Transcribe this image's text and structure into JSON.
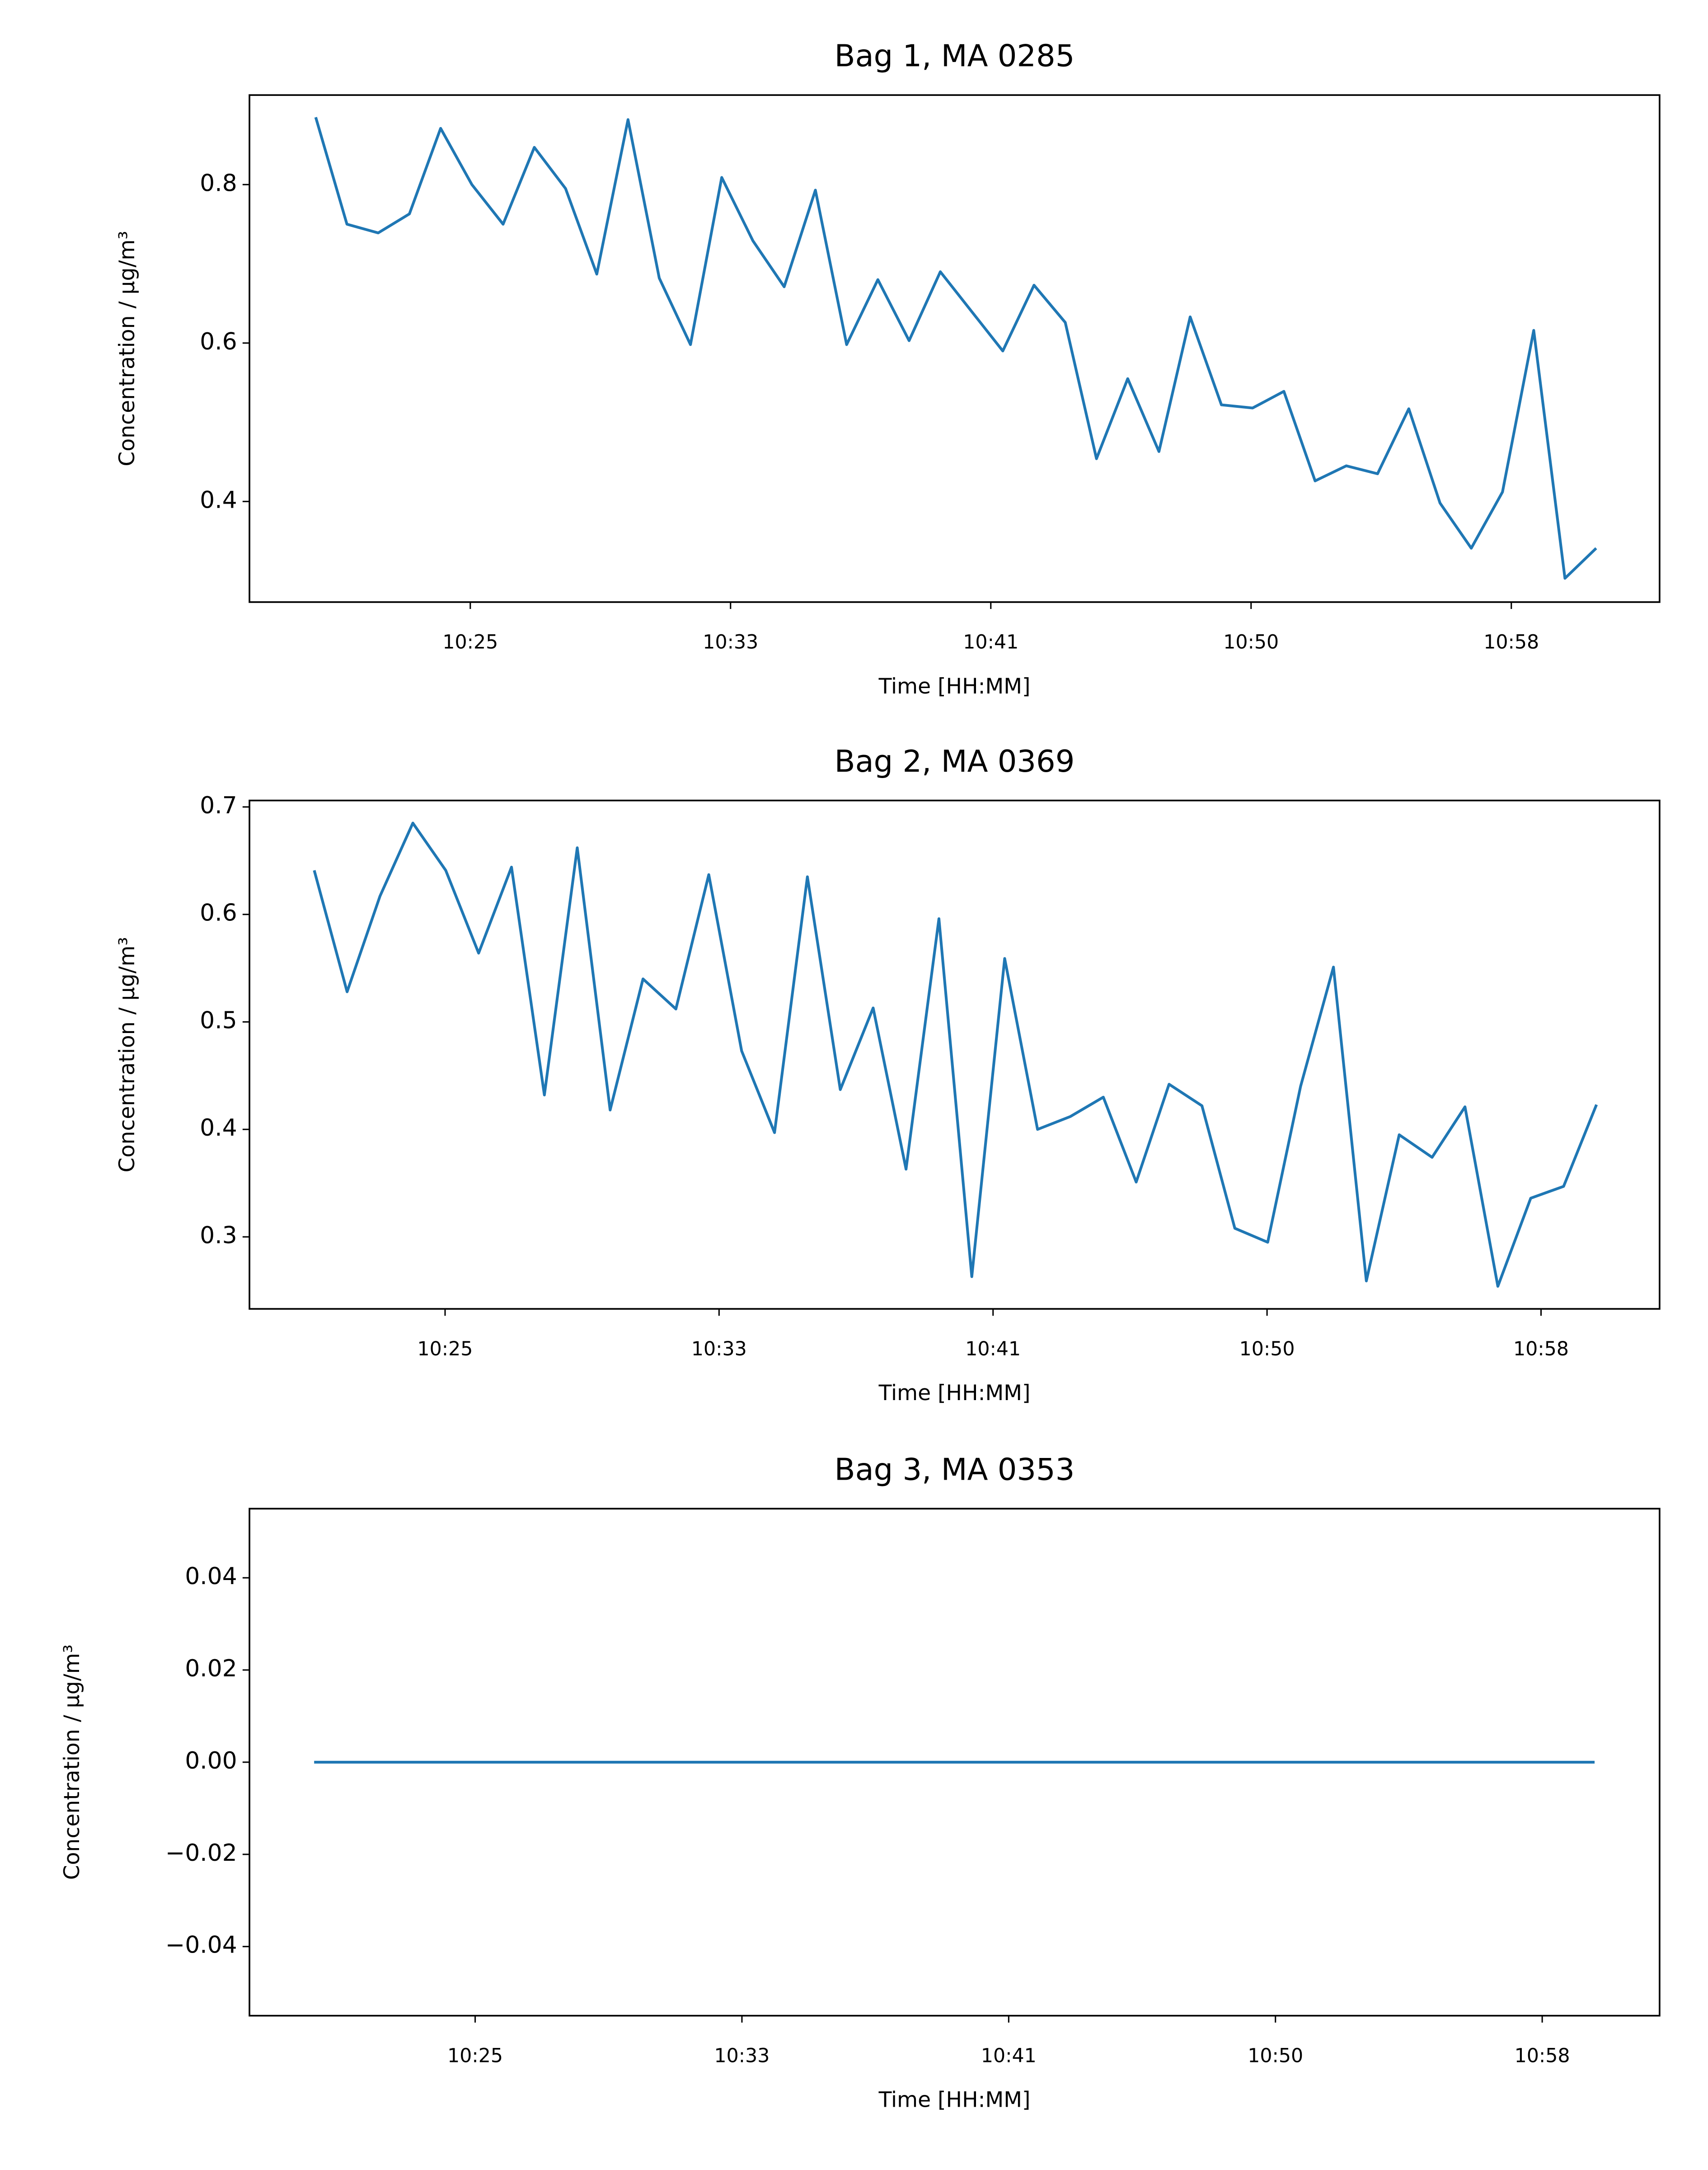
{
  "chart_data": [
    {
      "type": "line",
      "title": "Bag 1, MA 0285",
      "xlabel": "Time [HH:MM]",
      "ylabel": "Concentration / μg/m³",
      "color": "#1f77b4",
      "x": [
        620.4,
        621.39,
        622.38,
        623.37,
        624.36,
        625.35,
        626.34,
        627.33,
        628.32,
        629.31,
        630.3,
        631.29,
        632.28,
        633.27,
        634.26,
        635.25,
        636.24,
        637.23,
        638.22,
        639.21,
        640.2,
        641.19,
        642.18,
        643.17,
        644.16,
        645.15,
        646.14,
        647.13,
        648.12,
        649.11,
        650.1,
        651.09,
        652.08,
        653.07,
        654.06,
        655.05,
        656.04,
        657.03,
        658.02,
        659.01,
        660.0,
        660.99
      ],
      "values": [
        0.885,
        0.75,
        0.739,
        0.763,
        0.871,
        0.8,
        0.75,
        0.847,
        0.795,
        0.687,
        0.882,
        0.682,
        0.598,
        0.809,
        0.729,
        0.671,
        0.793,
        0.598,
        0.68,
        0.603,
        0.69,
        0.64,
        0.59,
        0.673,
        0.626,
        0.454,
        0.555,
        0.463,
        0.633,
        0.522,
        0.518,
        0.539,
        0.426,
        0.445,
        0.435,
        0.517,
        0.398,
        0.341,
        0.412,
        0.616,
        0.303,
        0.341
      ],
      "xlim": [
        618.3,
        663.0
      ],
      "xticks": [
        {
          "value": 625.3,
          "label": "10:25"
        },
        {
          "value": 633.55,
          "label": "10:33"
        },
        {
          "value": 641.8,
          "label": "10:41"
        },
        {
          "value": 650.05,
          "label": "10:50"
        },
        {
          "value": 658.3,
          "label": "10:58"
        }
      ],
      "ylim": [
        0.273,
        0.913
      ],
      "yticks": [
        0.4,
        0.6,
        0.8
      ]
    },
    {
      "type": "line",
      "title": "Bag 2, MA 0369",
      "xlabel": "Time [HH:MM]",
      "ylabel": "Concentration / μg/m³",
      "color": "#1f77b4",
      "x": [
        621.36,
        622.35,
        623.34,
        624.33,
        625.32,
        626.31,
        627.3,
        628.29,
        629.28,
        630.27,
        631.26,
        632.25,
        633.24,
        634.23,
        635.22,
        636.21,
        637.2,
        638.19,
        639.18,
        640.17,
        641.16,
        642.15,
        643.14,
        644.13,
        645.12,
        646.11,
        647.1,
        648.09,
        649.08,
        650.07,
        651.06,
        652.05,
        653.04,
        654.03,
        655.02,
        656.01,
        657.0,
        657.99,
        658.98,
        659.97
      ],
      "values": [
        0.641,
        0.528,
        0.617,
        0.685,
        0.641,
        0.564,
        0.644,
        0.432,
        0.662,
        0.418,
        0.54,
        0.512,
        0.637,
        0.473,
        0.397,
        0.635,
        0.437,
        0.513,
        0.363,
        0.596,
        0.263,
        0.559,
        0.4,
        0.412,
        0.43,
        0.351,
        0.442,
        0.422,
        0.308,
        0.295,
        0.44,
        0.551,
        0.259,
        0.395,
        0.374,
        0.421,
        0.254,
        0.336,
        0.347,
        0.423
      ],
      "xlim": [
        619.41,
        661.87
      ],
      "xticks": [
        {
          "value": 625.3,
          "label": "10:25"
        },
        {
          "value": 633.55,
          "label": "10:33"
        },
        {
          "value": 641.8,
          "label": "10:41"
        },
        {
          "value": 650.05,
          "label": "10:50"
        },
        {
          "value": 658.3,
          "label": "10:58"
        }
      ],
      "ylim": [
        0.233,
        0.706
      ],
      "yticks": [
        0.3,
        0.4,
        0.5,
        0.6,
        0.7
      ]
    },
    {
      "type": "line",
      "title": "Bag 3, MA 0353",
      "xlabel": "Time [HH:MM]",
      "ylabel": "Concentration / μg/m³",
      "color": "#1f77b4",
      "x": [
        620.32,
        621.31,
        622.3,
        623.29,
        624.28,
        625.27,
        626.26,
        627.25,
        628.24,
        629.23,
        630.22,
        631.21,
        632.2,
        633.19,
        634.18,
        635.17,
        636.16,
        637.15,
        638.14,
        639.13,
        640.12,
        641.11,
        642.1,
        643.09,
        644.08,
        645.07,
        646.06,
        647.05,
        648.04,
        649.03,
        650.02,
        651.01,
        652.0,
        652.99,
        653.98,
        654.97,
        655.96,
        656.95,
        657.94,
        658.93,
        659.92
      ],
      "values": [
        0,
        0,
        0,
        0,
        0,
        0,
        0,
        0,
        0,
        0,
        0,
        0,
        0,
        0,
        0,
        0,
        0,
        0,
        0,
        0,
        0,
        0,
        0,
        0,
        0,
        0,
        0,
        0,
        0,
        0,
        0,
        0,
        0,
        0,
        0,
        0,
        0,
        0,
        0,
        0,
        0
      ],
      "xlim": [
        618.32,
        661.93
      ],
      "xticks": [
        {
          "value": 625.3,
          "label": "10:25"
        },
        {
          "value": 633.55,
          "label": "10:33"
        },
        {
          "value": 641.8,
          "label": "10:41"
        },
        {
          "value": 650.05,
          "label": "10:50"
        },
        {
          "value": 658.3,
          "label": "10:58"
        }
      ],
      "ylim": [
        -0.055,
        0.055
      ],
      "yticks": [
        {
          "value": -0.04,
          "label": "−0.04"
        },
        {
          "value": -0.02,
          "label": "−0.02"
        },
        {
          "value": 0,
          "label": "0.00"
        },
        0.02,
        0.04
      ]
    }
  ]
}
